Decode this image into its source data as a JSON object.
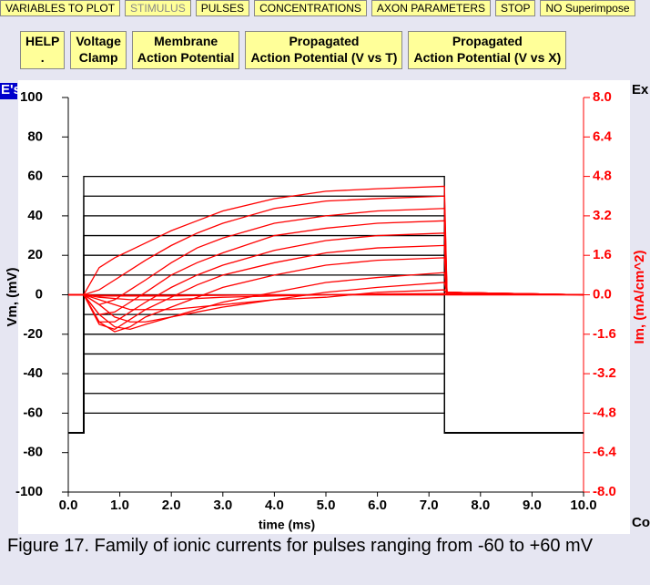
{
  "toolbar": {
    "buttons": [
      "VARIABLES TO PLOT",
      "STIMULUS",
      "PULSES",
      "CONCENTRATIONS",
      "AXON PARAMETERS",
      "STOP",
      "NO Superimpose"
    ]
  },
  "mode_buttons": [
    [
      "HELP",
      "."
    ],
    [
      "Voltage",
      "Clamp"
    ],
    [
      "Membrane",
      "Action Potential"
    ],
    [
      "Propagated",
      "Action Potential (V vs T)"
    ],
    [
      "Propagated",
      "Action Potential (V vs X)"
    ]
  ],
  "side_labels": {
    "left_top": "E's",
    "right_top": "Ex",
    "right_bottom": "Co"
  },
  "chart_data": {
    "type": "line",
    "xlabel": "time (ms)",
    "ylabel": "Vm, (mV)",
    "y2label": "Im, (mA/cm^2)",
    "xlim": [
      0,
      10
    ],
    "xticks": [
      {
        "value": 0,
        "label": "0.0"
      },
      {
        "value": 1,
        "label": "1.0"
      },
      {
        "value": 2,
        "label": "2.0"
      },
      {
        "value": 3,
        "label": "3.0"
      },
      {
        "value": 4,
        "label": "4.0"
      },
      {
        "value": 5,
        "label": "5.0"
      },
      {
        "value": 6,
        "label": "6.0"
      },
      {
        "value": 7,
        "label": "7.0"
      },
      {
        "value": 8,
        "label": "8.0"
      },
      {
        "value": 9,
        "label": "9.0"
      },
      {
        "value": 10,
        "label": "10.0"
      }
    ],
    "ylim": [
      -100,
      100
    ],
    "yticks": [
      100,
      80,
      60,
      40,
      20,
      0,
      -20,
      -40,
      -60,
      -80,
      -100
    ],
    "y2lim": [
      -8,
      8
    ],
    "y2ticks": [
      {
        "value": 8,
        "label": "8.0"
      },
      {
        "value": 6.4,
        "label": "6.4"
      },
      {
        "value": 4.8,
        "label": "4.8"
      },
      {
        "value": 3.2,
        "label": "3.2"
      },
      {
        "value": 1.6,
        "label": "1.6"
      },
      {
        "value": 0,
        "label": "0.0"
      },
      {
        "value": -1.6,
        "label": "-1.6"
      },
      {
        "value": -3.2,
        "label": "-3.2"
      },
      {
        "value": -4.8,
        "label": "-4.8"
      },
      {
        "value": -6.4,
        "label": "-6.4"
      },
      {
        "value": -8,
        "label": "-8.0"
      }
    ],
    "series": [
      {
        "color": "#000000",
        "x": [
          0,
          0.3,
          0.3,
          7.3,
          7.3,
          10
        ],
        "values": [
          -70,
          -70,
          60,
          60,
          -70,
          -70
        ]
      },
      {
        "color": "#000000",
        "x": [
          0,
          0.3,
          0.3,
          7.3,
          7.3,
          10
        ],
        "values": [
          -70,
          -70,
          50,
          50,
          -70,
          -70
        ]
      },
      {
        "color": "#000000",
        "x": [
          0,
          0.3,
          0.3,
          7.3,
          7.3,
          10
        ],
        "values": [
          -70,
          -70,
          40,
          40,
          -70,
          -70
        ]
      },
      {
        "color": "#000000",
        "x": [
          0,
          0.3,
          0.3,
          7.3,
          7.3,
          10
        ],
        "values": [
          -70,
          -70,
          30,
          30,
          -70,
          -70
        ]
      },
      {
        "color": "#000000",
        "x": [
          0,
          0.3,
          0.3,
          7.3,
          7.3,
          10
        ],
        "values": [
          -70,
          -70,
          20,
          20,
          -70,
          -70
        ]
      },
      {
        "color": "#000000",
        "x": [
          0,
          0.3,
          0.3,
          7.3,
          7.3,
          10
        ],
        "values": [
          -70,
          -70,
          10,
          10,
          -70,
          -70
        ]
      },
      {
        "color": "#000000",
        "x": [
          0,
          0.3,
          0.3,
          7.3,
          7.3,
          10
        ],
        "values": [
          -70,
          -70,
          0,
          0,
          -70,
          -70
        ]
      },
      {
        "color": "#000000",
        "x": [
          0,
          0.3,
          0.3,
          7.3,
          7.3,
          10
        ],
        "values": [
          -70,
          -70,
          -10,
          -10,
          -70,
          -70
        ]
      },
      {
        "color": "#000000",
        "x": [
          0,
          0.3,
          0.3,
          7.3,
          7.3,
          10
        ],
        "values": [
          -70,
          -70,
          -20,
          -20,
          -70,
          -70
        ]
      },
      {
        "color": "#000000",
        "x": [
          0,
          0.3,
          0.3,
          7.3,
          7.3,
          10
        ],
        "values": [
          -70,
          -70,
          -30,
          -30,
          -70,
          -70
        ]
      },
      {
        "color": "#000000",
        "x": [
          0,
          0.3,
          0.3,
          7.3,
          7.3,
          10
        ],
        "values": [
          -70,
          -70,
          -40,
          -40,
          -70,
          -70
        ]
      },
      {
        "color": "#000000",
        "x": [
          0,
          0.3,
          0.3,
          7.3,
          7.3,
          10
        ],
        "values": [
          -70,
          -70,
          -50,
          -50,
          -70,
          -70
        ]
      },
      {
        "color": "#000000",
        "x": [
          0,
          0.3,
          0.3,
          7.3,
          7.3,
          10
        ],
        "values": [
          -70,
          -70,
          -60,
          -60,
          -70,
          -70
        ]
      },
      {
        "color": "#ff0000",
        "axis": "y2",
        "x": [
          0,
          0.3,
          0.6,
          0.9,
          1.2,
          1.5,
          2,
          2.5,
          3,
          4,
          5,
          6,
          7.3,
          7.35,
          10
        ],
        "values": [
          0,
          0,
          1.1,
          1.5,
          1.8,
          2.1,
          2.6,
          3.0,
          3.4,
          3.9,
          4.2,
          4.3,
          4.4,
          0.1,
          0
        ]
      },
      {
        "color": "#ff0000",
        "axis": "y2",
        "x": [
          0,
          0.3,
          0.6,
          0.9,
          1.2,
          1.5,
          2,
          2.5,
          3,
          4,
          5,
          6,
          7.3,
          7.35,
          10
        ],
        "values": [
          0,
          0,
          0.2,
          0.6,
          1.0,
          1.4,
          2.0,
          2.5,
          2.9,
          3.5,
          3.8,
          3.9,
          4.0,
          0.1,
          0
        ]
      },
      {
        "color": "#ff0000",
        "axis": "y2",
        "x": [
          0,
          0.3,
          0.6,
          0.9,
          1.2,
          1.5,
          2,
          2.5,
          3,
          4,
          5,
          6,
          7.3,
          7.35,
          10
        ],
        "values": [
          0,
          0,
          -0.4,
          -0.2,
          0.2,
          0.6,
          1.3,
          1.9,
          2.3,
          2.9,
          3.2,
          3.4,
          3.5,
          0.1,
          0
        ]
      },
      {
        "color": "#ff0000",
        "axis": "y2",
        "x": [
          0,
          0.3,
          0.6,
          0.9,
          1.2,
          1.5,
          2,
          2.5,
          3,
          4,
          5,
          6,
          7.3,
          7.35,
          10
        ],
        "values": [
          0,
          0,
          -0.8,
          -0.7,
          -0.3,
          0.1,
          0.8,
          1.3,
          1.7,
          2.4,
          2.7,
          2.9,
          3.0,
          0.1,
          0
        ]
      },
      {
        "color": "#ff0000",
        "axis": "y2",
        "x": [
          0,
          0.3,
          0.6,
          0.9,
          1.2,
          1.5,
          2,
          2.5,
          3,
          4,
          5,
          6,
          7.3,
          7.35,
          10
        ],
        "values": [
          0,
          0,
          -1.1,
          -1.1,
          -0.7,
          -0.3,
          0.3,
          0.8,
          1.2,
          1.8,
          2.2,
          2.4,
          2.5,
          0.1,
          0
        ]
      },
      {
        "color": "#ff0000",
        "axis": "y2",
        "x": [
          0,
          0.3,
          0.6,
          0.9,
          1.2,
          1.5,
          2,
          2.5,
          3,
          4,
          5,
          6,
          7.3,
          7.35,
          10
        ],
        "values": [
          0,
          0,
          -1.2,
          -1.4,
          -1.0,
          -0.6,
          -0.1,
          0.4,
          0.8,
          1.3,
          1.7,
          1.9,
          2.0,
          0.1,
          0
        ]
      },
      {
        "color": "#ff0000",
        "axis": "y2",
        "x": [
          0,
          0.3,
          0.6,
          0.9,
          1.2,
          1.5,
          2,
          2.5,
          3,
          4,
          5,
          6,
          7.3,
          7.35,
          10
        ],
        "values": [
          0,
          0,
          -1.1,
          -1.5,
          -1.3,
          -0.9,
          -0.5,
          -0.1,
          0.3,
          0.8,
          1.2,
          1.4,
          1.5,
          0.1,
          0
        ]
      },
      {
        "color": "#ff0000",
        "axis": "y2",
        "x": [
          0,
          0.3,
          0.6,
          0.9,
          1.2,
          1.5,
          2,
          2.5,
          3,
          4,
          5,
          6,
          7.3,
          7.35,
          10
        ],
        "values": [
          0,
          0,
          -0.8,
          -1.3,
          -1.4,
          -1.2,
          -0.9,
          -0.6,
          -0.3,
          0.1,
          0.5,
          0.7,
          0.9,
          0.05,
          0
        ]
      },
      {
        "color": "#ff0000",
        "axis": "y2",
        "x": [
          0,
          0.3,
          0.6,
          0.9,
          1.2,
          1.5,
          2,
          2.5,
          3,
          4,
          5,
          6,
          7.3,
          7.35,
          10
        ],
        "values": [
          0,
          0,
          -0.4,
          -0.9,
          -1.1,
          -1.1,
          -0.9,
          -0.7,
          -0.5,
          -0.2,
          0.1,
          0.3,
          0.5,
          0.05,
          0
        ]
      },
      {
        "color": "#ff0000",
        "axis": "y2",
        "x": [
          0,
          0.3,
          0.6,
          0.9,
          1.2,
          1.5,
          2,
          2.5,
          3,
          4,
          5,
          6,
          7.3,
          7.35,
          10
        ],
        "values": [
          0,
          0,
          -0.2,
          -0.4,
          -0.6,
          -0.6,
          -0.6,
          -0.5,
          -0.4,
          -0.2,
          -0.1,
          0.1,
          0.2,
          0.02,
          0
        ]
      },
      {
        "color": "#ff0000",
        "axis": "y2",
        "x": [
          0,
          0.3,
          0.6,
          0.9,
          1.2,
          1.5,
          2,
          2.5,
          3,
          4,
          5,
          6,
          7.3,
          7.35,
          10
        ],
        "values": [
          0,
          0,
          -0.1,
          -0.15,
          -0.2,
          -0.2,
          -0.2,
          -0.15,
          -0.1,
          -0.05,
          0,
          0.03,
          0.05,
          0,
          0
        ]
      },
      {
        "color": "#ff0000",
        "axis": "y2",
        "x": [
          0,
          0.3,
          0.6,
          0.9,
          1.2,
          1.5,
          2,
          2.5,
          3,
          4,
          5,
          6,
          7.3,
          7.35,
          10
        ],
        "values": [
          0,
          0,
          -0.05,
          -0.05,
          -0.05,
          -0.05,
          -0.05,
          -0.03,
          -0.02,
          -0.01,
          0,
          0,
          0,
          0,
          0
        ]
      },
      {
        "color": "#ff0000",
        "axis": "y2",
        "x": [
          0,
          0.3,
          0.6,
          0.9,
          1.2,
          1.5,
          2,
          2.5,
          3,
          4,
          5,
          6,
          7.3,
          7.35,
          10
        ],
        "values": [
          0,
          0,
          -0.02,
          -0.02,
          -0.02,
          -0.02,
          -0.02,
          -0.01,
          -0.01,
          0,
          0,
          0,
          0,
          0,
          0
        ]
      }
    ]
  },
  "caption": "Figure 17. Family of ionic currents for pulses ranging from -60 to +60 mV"
}
